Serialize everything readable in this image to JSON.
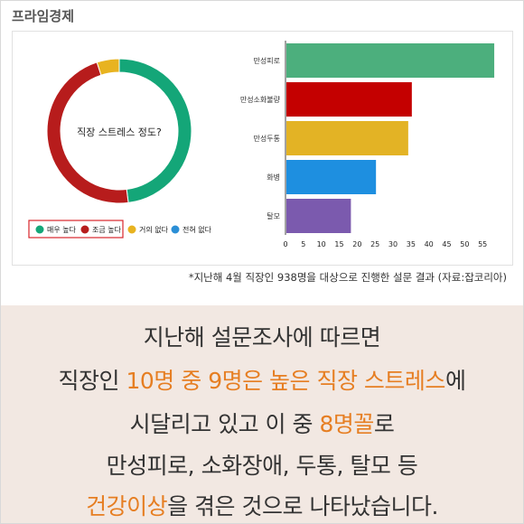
{
  "brand": "프라임경제",
  "footnote": "*지난해 4월 직장인 938명을 대상으로 진행한 설문 결과 (자료:잡코리아)",
  "donut": {
    "center_label": "직장 스트레스 정도?",
    "slices": [
      {
        "label": "매우 높다",
        "value": 48,
        "color": "#14a678"
      },
      {
        "label": "조금 높다",
        "value": 47,
        "color": "#b71c1c"
      },
      {
        "label": "거의 없다",
        "value": 5,
        "color": "#e8b320"
      },
      {
        "label": "전혀 없다",
        "value": 0,
        "color": "#2b8fd6"
      }
    ]
  },
  "chart_data": {
    "type": "bar",
    "orientation": "horizontal",
    "categories": [
      "만성피로",
      "만성소화불량",
      "만성두통",
      "화병",
      "탈모"
    ],
    "values": [
      58,
      35,
      34,
      25,
      18
    ],
    "colors": [
      "#4caf7d",
      "#c40000",
      "#e3b325",
      "#1e8fe0",
      "#7b5aae"
    ],
    "xticks": [
      0,
      5,
      10,
      15,
      20,
      25,
      30,
      35,
      40,
      45,
      50,
      55
    ],
    "xlim": [
      0,
      60
    ],
    "title": "",
    "xlabel": "",
    "ylabel": ""
  },
  "message": {
    "line1": "지난해 설문조사에 따르면",
    "line2_a": "직장인 ",
    "line2_b": "10명 중 9명은 높은 직장 스트레스",
    "line2_c": "에",
    "line3_a": "시달리고 있고 이 중 ",
    "line3_b": "8명꼴",
    "line3_c": "로",
    "line4": "만성피로, 소화장애, 두통, 탈모 등",
    "line5_a": "건강이상",
    "line5_b": "을 겪은 것으로 나타났습니다."
  }
}
